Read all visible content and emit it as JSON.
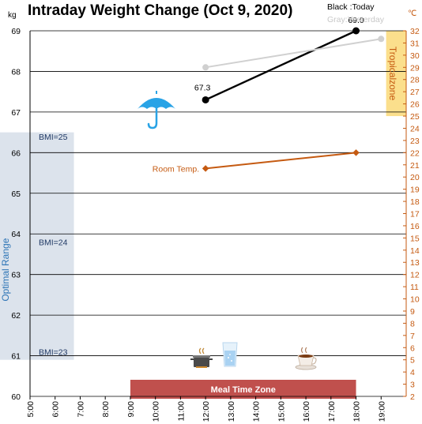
{
  "chart_data": {
    "type": "line",
    "title": "Intraday Weight Change (Oct 9, 2020)",
    "y_unit": "kg",
    "y2_unit": "℃",
    "ylim": [
      60,
      69
    ],
    "y_ticks": [
      "60",
      "61",
      "62",
      "63",
      "64",
      "65",
      "66",
      "67",
      "68",
      "69"
    ],
    "y2lim": [
      2,
      32
    ],
    "y2_ticks": [
      "2",
      "3",
      "4",
      "5",
      "6",
      "7",
      "8",
      "9",
      "10",
      "11",
      "12",
      "13",
      "14",
      "15",
      "16",
      "17",
      "18",
      "19",
      "20",
      "21",
      "22",
      "23",
      "24",
      "25",
      "26",
      "27",
      "28",
      "29",
      "30",
      "31",
      "32"
    ],
    "x_ticks": [
      "5:00",
      "6:00",
      "7:00",
      "8:00",
      "9:00",
      "10:00",
      "11:00",
      "12:00",
      "13:00",
      "14:00",
      "15:00",
      "16:00",
      "17:00",
      "18:00",
      "19:00"
    ],
    "series": [
      {
        "name": "Today",
        "color": "#000000",
        "x": [
          12,
          18
        ],
        "y": [
          67.3,
          69.0
        ],
        "labels": [
          "67.3",
          "69.0"
        ]
      },
      {
        "name": "Yesterday",
        "color": "#d0d0d0",
        "x": [
          12,
          19
        ],
        "y": [
          68.1,
          68.8
        ]
      },
      {
        "name": "Room Temp.",
        "color": "#c55a11",
        "axis": "right",
        "x": [
          12,
          18
        ],
        "y": [
          20.7,
          22.0
        ]
      }
    ],
    "legend": {
      "line1": "Black :Today",
      "line2": "Gray:Yesterday",
      "placement": "top-right"
    },
    "bands": {
      "optimal": {
        "label": "Optimal Range",
        "from": 60.9,
        "to": 66.5,
        "x_from": 5,
        "x_to": 6.75,
        "color": "#dce3ec"
      },
      "tropical": {
        "label": "Tropicalzone",
        "from": 25,
        "to": 32,
        "axis": "right",
        "x_from": 19.2,
        "x_to": 20,
        "color": "#fbdf8c"
      }
    },
    "bmi_labels": [
      {
        "text": "BMI=25",
        "y": 66.4
      },
      {
        "text": "BMI=24",
        "y": 63.8
      },
      {
        "text": "BMI=23",
        "y": 61.1
      }
    ],
    "room_label": "Room Temp.",
    "meal_zone": {
      "label": "Meal Time Zone",
      "x_from": 9,
      "x_to": 18,
      "color": "#c0504d"
    },
    "icons": [
      "umbrella-icon",
      "cooking-pot-icon",
      "water-glass-icon",
      "coffee-cup-icon"
    ]
  }
}
